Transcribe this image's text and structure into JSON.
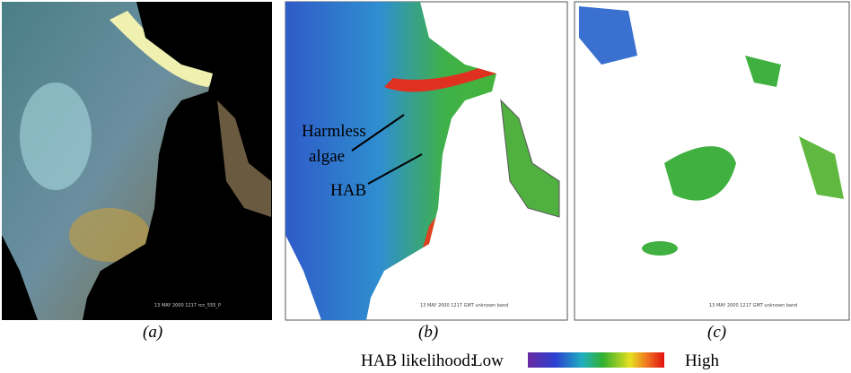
{
  "panels": [
    {
      "label": "(a)",
      "caption": "13 MAY 2000 1217 rcn_555_P"
    },
    {
      "label": "(b)",
      "caption": "13 MAY 2000 1217 GMT unknown band"
    },
    {
      "label": "(c)",
      "caption": "13 MAY 2000 1217 GMT unknown band"
    }
  ],
  "annotations": {
    "harmless_line1": "Harmless",
    "harmless_line2": "algae",
    "hab": "HAB"
  },
  "legend": {
    "title": "HAB likelihood:",
    "low": "Low",
    "high": "High"
  }
}
